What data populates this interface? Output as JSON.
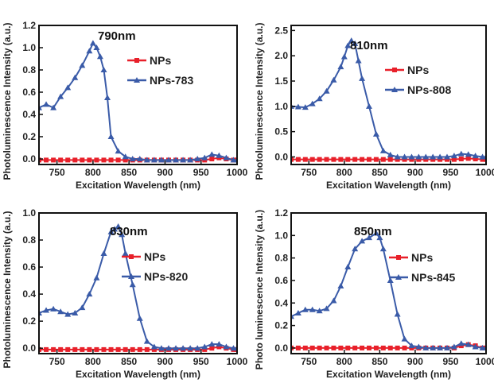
{
  "chart_data": [
    {
      "type": "line",
      "title": "790nm",
      "xlabel": "Excitation Wavelength (nm)",
      "ylabel": "Photoluminescence Intensity (a.u.)",
      "xlim": [
        725,
        1000
      ],
      "ylim": [
        -0.05,
        1.2
      ],
      "xticks": [
        750,
        800,
        850,
        900,
        950,
        1000
      ],
      "yticks": [
        0.0,
        0.2,
        0.4,
        0.6,
        0.8,
        1.0,
        1.2
      ],
      "ytick_labels": [
        "0.0",
        "0.2",
        "0.4",
        "0.6",
        "0.8",
        "1.0",
        "1.2"
      ],
      "legend_position": "center-right",
      "series": [
        {
          "name": "NPs",
          "color": "#e8202a",
          "marker": "square",
          "x": [
            725,
            735,
            745,
            755,
            765,
            775,
            785,
            795,
            805,
            815,
            825,
            835,
            845,
            855,
            865,
            875,
            885,
            895,
            905,
            915,
            925,
            935,
            945,
            955,
            965,
            975,
            985,
            995,
            1000
          ],
          "y": [
            -0.01,
            -0.01,
            -0.01,
            -0.01,
            -0.01,
            -0.01,
            -0.01,
            -0.01,
            -0.01,
            -0.01,
            -0.01,
            -0.01,
            -0.01,
            -0.01,
            -0.01,
            -0.01,
            -0.01,
            -0.01,
            -0.01,
            -0.01,
            -0.01,
            -0.01,
            -0.01,
            -0.01,
            0.0,
            0.01,
            0.0,
            -0.01,
            -0.01
          ]
        },
        {
          "name": "NPs-783",
          "color": "#3a5ba8",
          "marker": "triangle",
          "x": [
            725,
            735,
            745,
            755,
            765,
            775,
            785,
            795,
            800,
            805,
            810,
            815,
            820,
            825,
            835,
            845,
            855,
            865,
            875,
            885,
            895,
            905,
            915,
            925,
            935,
            945,
            955,
            965,
            975,
            985,
            995,
            1000
          ],
          "y": [
            0.46,
            0.49,
            0.46,
            0.56,
            0.64,
            0.73,
            0.84,
            0.97,
            1.04,
            1.0,
            0.92,
            0.8,
            0.55,
            0.2,
            0.07,
            0.02,
            0.0,
            0.0,
            -0.01,
            -0.01,
            -0.01,
            -0.01,
            -0.01,
            -0.01,
            -0.01,
            0.0,
            0.01,
            0.04,
            0.03,
            0.01,
            -0.01,
            -0.01
          ]
        }
      ]
    },
    {
      "type": "line",
      "title": "810nm",
      "xlabel": "Excitation Wavelength (nm)",
      "ylabel": "Photoluminescence Intensity (a.u.)",
      "xlim": [
        725,
        1000
      ],
      "ylim": [
        -0.15,
        2.6
      ],
      "xticks": [
        750,
        800,
        850,
        900,
        950,
        1000
      ],
      "yticks": [
        0.0,
        0.5,
        1.0,
        1.5,
        2.0,
        2.5
      ],
      "ytick_labels": [
        "0.0",
        "0.5",
        "1.0",
        "1.5",
        "2.0",
        "2.5"
      ],
      "legend_position": "center-right",
      "series": [
        {
          "name": "NPs",
          "color": "#e8202a",
          "marker": "square",
          "x": [
            725,
            735,
            745,
            755,
            765,
            775,
            785,
            795,
            805,
            815,
            825,
            835,
            845,
            855,
            865,
            875,
            885,
            895,
            905,
            915,
            925,
            935,
            945,
            955,
            965,
            975,
            985,
            995,
            1000
          ],
          "y": [
            -0.05,
            -0.05,
            -0.05,
            -0.05,
            -0.05,
            -0.05,
            -0.05,
            -0.05,
            -0.05,
            -0.05,
            -0.05,
            -0.05,
            -0.05,
            -0.05,
            -0.05,
            -0.05,
            -0.05,
            -0.05,
            -0.05,
            -0.05,
            -0.05,
            -0.05,
            -0.05,
            -0.05,
            -0.04,
            -0.03,
            -0.04,
            -0.05,
            -0.05
          ]
        },
        {
          "name": "NPs-808",
          "color": "#3a5ba8",
          "marker": "triangle",
          "x": [
            725,
            735,
            745,
            755,
            765,
            775,
            785,
            795,
            800,
            805,
            810,
            815,
            820,
            825,
            835,
            845,
            855,
            865,
            875,
            885,
            895,
            905,
            915,
            925,
            935,
            945,
            955,
            965,
            975,
            985,
            995,
            1000
          ],
          "y": [
            1.0,
            0.99,
            0.98,
            1.05,
            1.15,
            1.3,
            1.52,
            1.78,
            1.98,
            2.2,
            2.3,
            2.24,
            1.9,
            1.55,
            1.0,
            0.45,
            0.12,
            0.04,
            0.0,
            0.0,
            0.0,
            0.0,
            0.0,
            0.0,
            0.0,
            0.0,
            0.02,
            0.06,
            0.05,
            0.02,
            0.0,
            0.0
          ]
        }
      ]
    },
    {
      "type": "line",
      "title": "830nm",
      "xlabel": "Excitation Wavelength (nm)",
      "ylabel": "Photoluminescence Intensity (a.u.)",
      "xlim": [
        725,
        1000
      ],
      "ylim": [
        -0.04,
        1.0
      ],
      "xticks": [
        750,
        800,
        850,
        900,
        950,
        1000
      ],
      "yticks": [
        0.0,
        0.2,
        0.4,
        0.6,
        0.8,
        1.0
      ],
      "ytick_labels": [
        "0.0",
        "0.2",
        "0.4",
        "0.6",
        "0.8",
        "1.0"
      ],
      "legend_position": "center-right",
      "series": [
        {
          "name": "NPs",
          "color": "#e8202a",
          "marker": "square",
          "x": [
            725,
            735,
            745,
            755,
            765,
            775,
            785,
            795,
            805,
            815,
            825,
            835,
            845,
            855,
            865,
            875,
            885,
            895,
            905,
            915,
            925,
            935,
            945,
            955,
            965,
            975,
            985,
            995,
            1000
          ],
          "y": [
            -0.01,
            -0.01,
            -0.01,
            -0.01,
            -0.01,
            -0.01,
            -0.01,
            -0.01,
            -0.01,
            -0.01,
            -0.01,
            -0.01,
            -0.01,
            -0.01,
            -0.01,
            -0.01,
            -0.01,
            -0.01,
            -0.01,
            -0.01,
            -0.01,
            -0.01,
            -0.01,
            -0.01,
            0.0,
            0.01,
            0.0,
            -0.01,
            -0.01
          ]
        },
        {
          "name": "NPs-820",
          "color": "#3a5ba8",
          "marker": "triangle",
          "x": [
            725,
            735,
            745,
            755,
            765,
            775,
            785,
            795,
            805,
            815,
            825,
            830,
            835,
            840,
            845,
            855,
            865,
            875,
            885,
            895,
            905,
            915,
            925,
            935,
            945,
            955,
            965,
            975,
            985,
            995,
            1000
          ],
          "y": [
            0.26,
            0.28,
            0.29,
            0.27,
            0.25,
            0.26,
            0.3,
            0.4,
            0.52,
            0.7,
            0.86,
            0.88,
            0.9,
            0.84,
            0.7,
            0.47,
            0.22,
            0.05,
            0.01,
            0.0,
            0.0,
            0.0,
            0.0,
            0.0,
            0.0,
            0.01,
            0.03,
            0.03,
            0.01,
            0.0,
            0.0
          ]
        }
      ]
    },
    {
      "type": "line",
      "title": "850nm",
      "xlabel": "Excitation Wavelength (nm)",
      "ylabel": "Photo luminescence Intensity (a.u.)",
      "xlim": [
        725,
        1000
      ],
      "ylim": [
        -0.05,
        1.2
      ],
      "xticks": [
        750,
        800,
        850,
        900,
        950,
        1000
      ],
      "yticks": [
        0.0,
        0.2,
        0.4,
        0.6,
        0.8,
        1.0,
        1.2
      ],
      "ytick_labels": [
        "0.0",
        "0.2",
        "0.4",
        "0.6",
        "0.8",
        "1.0",
        "1.2"
      ],
      "legend_position": "center-right",
      "series": [
        {
          "name": "NPs",
          "color": "#e8202a",
          "marker": "square",
          "x": [
            725,
            735,
            745,
            755,
            765,
            775,
            785,
            795,
            805,
            815,
            825,
            835,
            845,
            855,
            865,
            875,
            885,
            895,
            905,
            915,
            925,
            935,
            945,
            955,
            965,
            975,
            985,
            995,
            1000
          ],
          "y": [
            0.0,
            0.0,
            0.0,
            0.0,
            0.0,
            0.0,
            0.0,
            0.0,
            0.0,
            0.0,
            0.0,
            0.0,
            0.0,
            0.0,
            0.0,
            0.0,
            0.0,
            0.0,
            0.0,
            0.0,
            0.0,
            0.0,
            0.0,
            0.0,
            0.02,
            0.03,
            0.02,
            0.0,
            0.0
          ]
        },
        {
          "name": "NPs-845",
          "color": "#3a5ba8",
          "marker": "triangle",
          "x": [
            725,
            735,
            745,
            755,
            765,
            775,
            785,
            795,
            805,
            815,
            825,
            835,
            845,
            850,
            855,
            865,
            875,
            885,
            895,
            905,
            915,
            925,
            935,
            945,
            955,
            965,
            975,
            985,
            995,
            1000
          ],
          "y": [
            0.28,
            0.31,
            0.34,
            0.34,
            0.33,
            0.35,
            0.42,
            0.55,
            0.72,
            0.88,
            0.95,
            0.98,
            1.02,
            0.98,
            0.88,
            0.6,
            0.3,
            0.08,
            0.02,
            0.01,
            0.0,
            0.0,
            0.0,
            0.0,
            0.01,
            0.04,
            0.03,
            0.01,
            0.0,
            0.0
          ]
        }
      ]
    }
  ]
}
